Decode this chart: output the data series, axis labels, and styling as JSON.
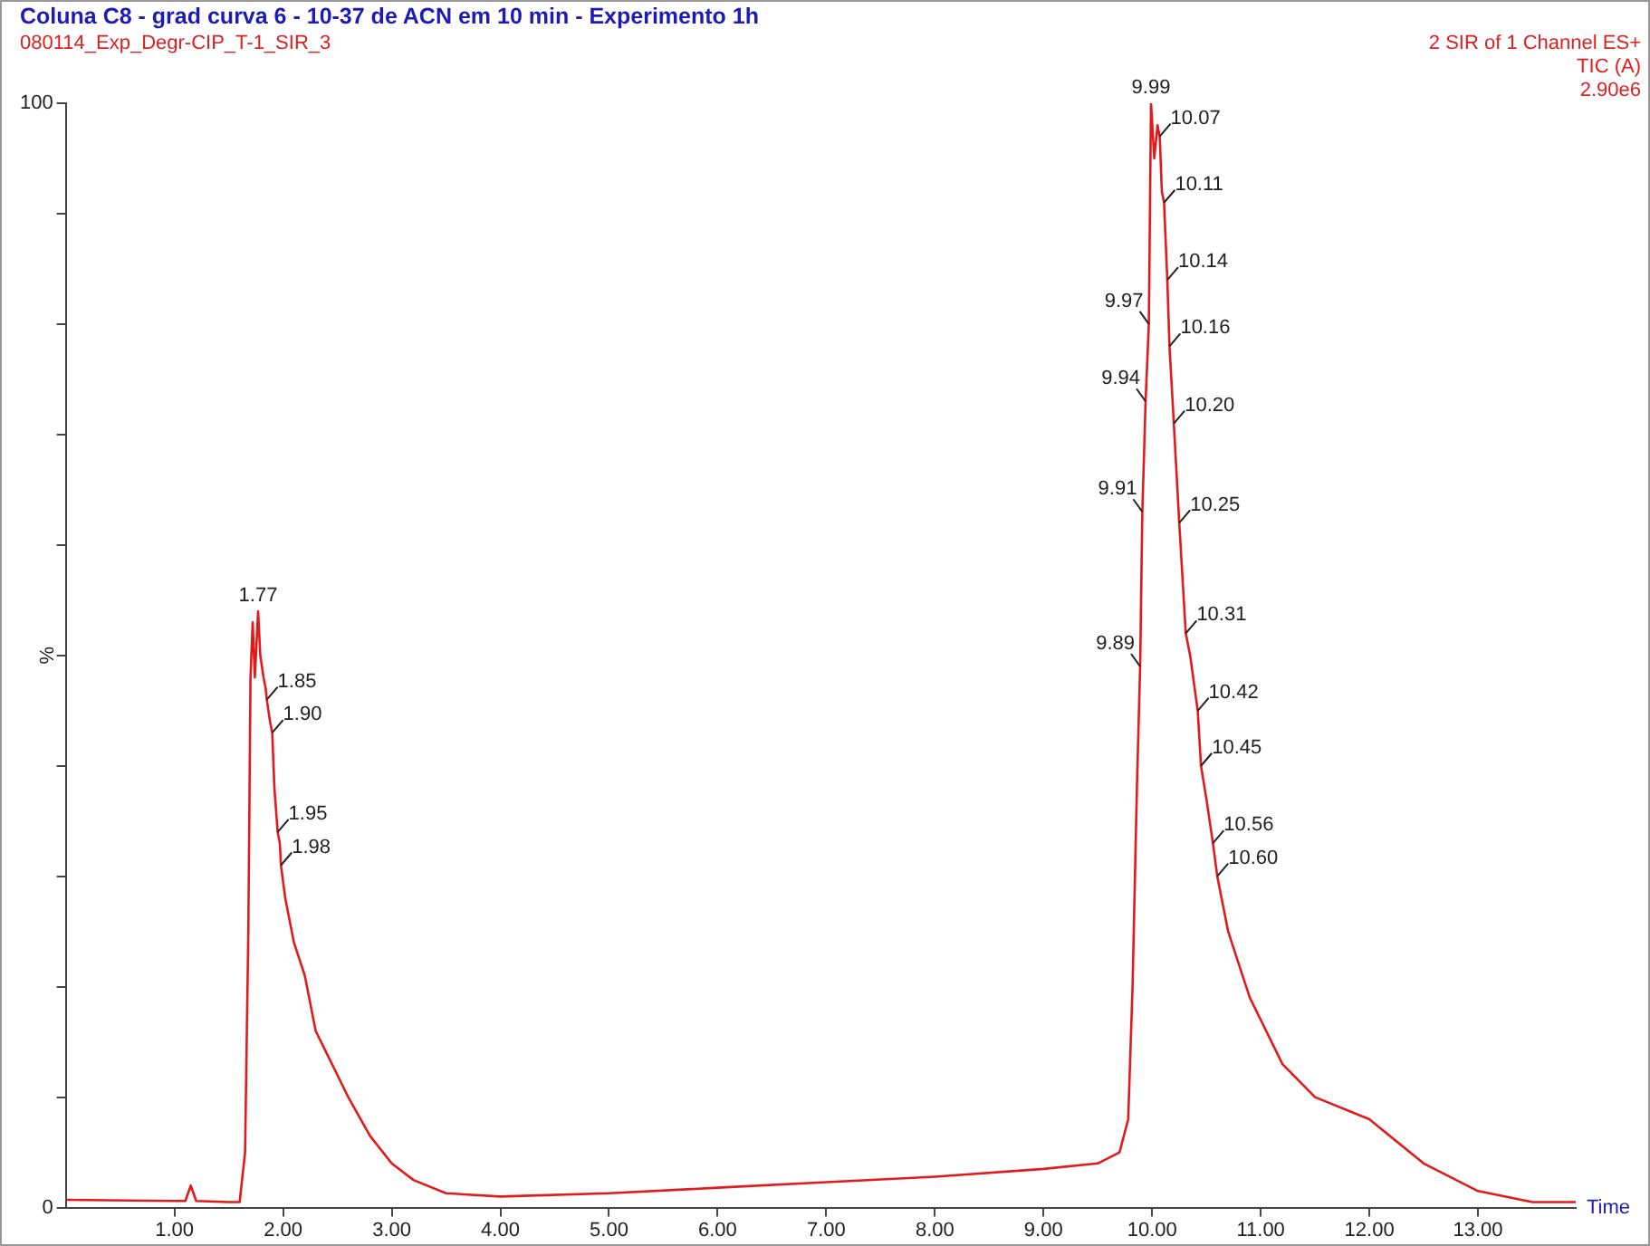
{
  "chart_data": {
    "type": "line",
    "title": "Coluna C8 - grad curva 6  - 10-37 de ACN em 10 min - Experimento 1h",
    "subtitle": "080114_Exp_Degr-CIP_T-1_SIR_3",
    "xlabel": "Time",
    "ylabel": "%",
    "x": [
      0.0,
      1.0,
      1.1,
      1.15,
      1.2,
      1.5,
      1.6,
      1.65,
      1.68,
      1.7,
      1.72,
      1.74,
      1.76,
      1.77,
      1.79,
      1.82,
      1.84,
      1.85,
      1.88,
      1.9,
      1.92,
      1.95,
      1.97,
      1.98,
      2.02,
      2.1,
      2.2,
      2.3,
      2.4,
      2.5,
      2.6,
      2.8,
      3.0,
      3.2,
      3.5,
      4.0,
      5.0,
      6.0,
      7.0,
      8.0,
      9.0,
      9.5,
      9.7,
      9.78,
      9.82,
      9.86,
      9.89,
      9.91,
      9.94,
      9.97,
      9.99,
      10.02,
      10.05,
      10.07,
      10.09,
      10.11,
      10.14,
      10.16,
      10.2,
      10.25,
      10.31,
      10.35,
      10.42,
      10.45,
      10.5,
      10.56,
      10.6,
      10.7,
      10.8,
      10.9,
      11.0,
      11.2,
      11.5,
      12.0,
      12.5,
      13.0,
      13.5,
      13.9
    ],
    "series": [
      {
        "color": "#e31a1c",
        "values": [
          0.7,
          0.6,
          0.6,
          2.0,
          0.6,
          0.5,
          0.5,
          5,
          25,
          48,
          53,
          48,
          52,
          54,
          50,
          48,
          47,
          46,
          44,
          43,
          38,
          34,
          33,
          31,
          28,
          24,
          21,
          16,
          14,
          12,
          10,
          6.5,
          4,
          2.5,
          1.3,
          1.0,
          1.3,
          1.8,
          2.3,
          2.8,
          3.5,
          4,
          5,
          8,
          20,
          38,
          49,
          63,
          73,
          80,
          100,
          95,
          98,
          97,
          92,
          91,
          84,
          78,
          71,
          62,
          52,
          50,
          45,
          40,
          37,
          33,
          30,
          25,
          22,
          19,
          17,
          13,
          10,
          8,
          4,
          1.5,
          0.5,
          0.5
        ]
      }
    ],
    "xlim": [
      0,
      13.9
    ],
    "xticks": [
      {
        "value": 1,
        "label": "1.00"
      },
      {
        "value": 2,
        "label": "2.00"
      },
      {
        "value": 3,
        "label": "3.00"
      },
      {
        "value": 4,
        "label": "4.00"
      },
      {
        "value": 5,
        "label": "5.00"
      },
      {
        "value": 6,
        "label": "6.00"
      },
      {
        "value": 7,
        "label": "7.00"
      },
      {
        "value": 8,
        "label": "8.00"
      },
      {
        "value": 9,
        "label": "9.00"
      },
      {
        "value": 10,
        "label": "10.00"
      },
      {
        "value": 11,
        "label": "11.00"
      },
      {
        "value": 12,
        "label": "12.00"
      },
      {
        "value": 13,
        "label": "13.00"
      }
    ],
    "ylim": [
      0,
      100
    ],
    "yticks": [
      0,
      {
        "value": 10,
        "label": null
      },
      {
        "value": 20,
        "label": null
      },
      {
        "value": 30,
        "label": null
      },
      {
        "value": 40,
        "label": null
      },
      {
        "value": 50,
        "label": null
      },
      {
        "value": 60,
        "label": null
      },
      {
        "value": 70,
        "label": null
      },
      {
        "value": 80,
        "label": null
      },
      {
        "value": 90,
        "label": null
      },
      100
    ],
    "annotations": [
      "2 SIR of 1 Channel ES+",
      "TIC (A)",
      "2.90e6",
      {
        "text": "1.77",
        "x": 1.77,
        "y": 54
      },
      {
        "text": "1.85",
        "x": 1.85,
        "y": 46
      },
      {
        "text": "1.90",
        "x": 1.9,
        "y": 43
      },
      {
        "text": "1.95",
        "x": 1.95,
        "y": 34
      },
      {
        "text": "1.98",
        "x": 1.98,
        "y": 31
      },
      {
        "text": "9.89",
        "x": 9.89,
        "y": 49
      },
      {
        "text": "9.91",
        "x": 9.91,
        "y": 63
      },
      {
        "text": "9.94",
        "x": 9.94,
        "y": 73
      },
      {
        "text": "9.97",
        "x": 9.97,
        "y": 80
      },
      {
        "text": "9.99",
        "x": 9.99,
        "y": 100
      },
      {
        "text": "10.07",
        "x": 10.07,
        "y": 97
      },
      {
        "text": "10.11",
        "x": 10.11,
        "y": 91
      },
      {
        "text": "10.14",
        "x": 10.14,
        "y": 84
      },
      {
        "text": "10.16",
        "x": 10.16,
        "y": 78
      },
      {
        "text": "10.20",
        "x": 10.2,
        "y": 71
      },
      {
        "text": "10.25",
        "x": 10.25,
        "y": 62
      },
      {
        "text": "10.31",
        "x": 10.31,
        "y": 52
      },
      {
        "text": "10.42",
        "x": 10.42,
        "y": 45
      },
      {
        "text": "10.45",
        "x": 10.45,
        "y": 40
      },
      {
        "text": "10.56",
        "x": 10.56,
        "y": 33
      },
      {
        "text": "10.60",
        "x": 10.6,
        "y": 30
      }
    ]
  }
}
